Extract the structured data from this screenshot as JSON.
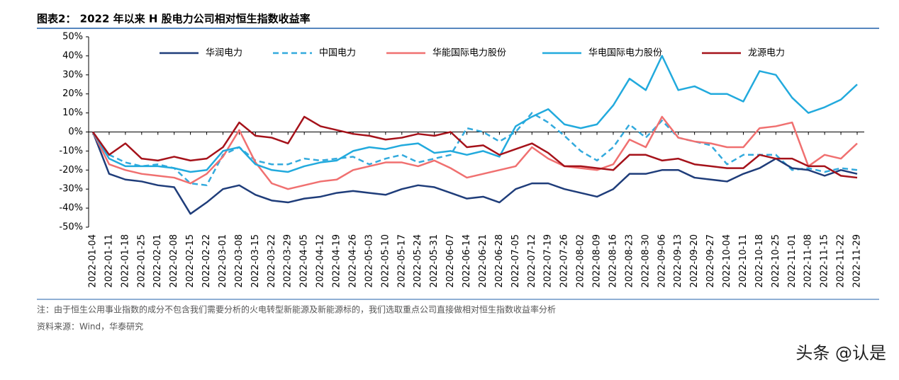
{
  "chart_data": {
    "type": "line",
    "title": "图表2： 2022 年以来 H 股电力公司相对恒生指数收益率",
    "categories": [
      "2022-01-04",
      "2022-01-11",
      "2022-01-18",
      "2022-01-25",
      "2022-02-01",
      "2022-02-08",
      "2022-02-15",
      "2022-02-22",
      "2022-03-01",
      "2022-03-08",
      "2022-03-15",
      "2022-03-22",
      "2022-03-29",
      "2022-04-05",
      "2022-04-12",
      "2022-04-19",
      "2022-04-26",
      "2022-05-03",
      "2022-05-10",
      "2022-05-17",
      "2022-05-24",
      "2022-05-31",
      "2022-06-07",
      "2022-06-14",
      "2022-06-21",
      "2022-06-28",
      "2022-07-05",
      "2022-07-12",
      "2022-07-19",
      "2022-07-26",
      "2022-08-02",
      "2022-08-09",
      "2022-08-16",
      "2022-08-23",
      "2022-08-30",
      "2022-09-06",
      "2022-09-13",
      "2022-09-20",
      "2022-09-27",
      "2022-10-04",
      "2022-10-11",
      "2022-10-18",
      "2022-10-25",
      "2022-11-01",
      "2022-11-08",
      "2022-11-15",
      "2022-11-22",
      "2022-11-29"
    ],
    "series": [
      {
        "name": "华润电力",
        "color": "#1f3d7a",
        "dashed": false,
        "values": [
          0,
          -22,
          -25,
          -26,
          -28,
          -29,
          -43,
          -37,
          -30,
          -28,
          -33,
          -36,
          -37,
          -35,
          -34,
          -32,
          -31,
          -32,
          -33,
          -30,
          -28,
          -29,
          -32,
          -35,
          -34,
          -37,
          -30,
          -27,
          -27,
          -30,
          -32,
          -34,
          -30,
          -22,
          -22,
          -20,
          -20,
          -24,
          -25,
          -26,
          -22,
          -19,
          -14,
          -19,
          -20,
          -23,
          -20,
          -22
        ]
      },
      {
        "name": "中国电力",
        "color": "#33aadd",
        "dashed": true,
        "values": [
          0,
          -12,
          -16,
          -18,
          -17,
          -19,
          -27,
          -28,
          -12,
          -8,
          -15,
          -17,
          -17,
          -14,
          -15,
          -14,
          -13,
          -17,
          -14,
          -12,
          -16,
          -14,
          -12,
          2,
          0,
          -5,
          0,
          10,
          5,
          -2,
          -10,
          -15,
          -8,
          4,
          -3,
          6,
          -3,
          -5,
          -7,
          -17,
          -12,
          -12,
          -12,
          -20,
          -19,
          -21,
          -19,
          -20
        ]
      },
      {
        "name": "华能国际电力股份",
        "color": "#f07070",
        "dashed": false,
        "values": [
          0,
          -17,
          -20,
          -22,
          -23,
          -24,
          -27,
          -22,
          -13,
          1,
          -16,
          -27,
          -30,
          -28,
          -26,
          -25,
          -20,
          -18,
          -16,
          -16,
          -18,
          -15,
          -19,
          -24,
          -22,
          -20,
          -18,
          -8,
          -14,
          -18,
          -19,
          -20,
          -17,
          -4,
          -8,
          8,
          -3,
          -5,
          -6,
          -8,
          -8,
          2,
          3,
          5,
          -18,
          -12,
          -14,
          -6
        ]
      },
      {
        "name": "华电国际电力股份",
        "color": "#22aadd",
        "dashed": false,
        "values": [
          0,
          -14,
          -18,
          -18,
          -18,
          -19,
          -21,
          -20,
          -10,
          -8,
          -17,
          -20,
          -21,
          -18,
          -16,
          -15,
          -10,
          -8,
          -9,
          -7,
          -6,
          -11,
          -10,
          -12,
          -10,
          -13,
          3,
          8,
          12,
          4,
          2,
          4,
          14,
          28,
          22,
          40,
          22,
          24,
          20,
          20,
          16,
          32,
          30,
          18,
          10,
          13,
          17,
          25
        ]
      },
      {
        "name": "龙源电力",
        "color": "#a5121a",
        "dashed": false,
        "values": [
          0,
          -12,
          -6,
          -14,
          -15,
          -13,
          -15,
          -14,
          -8,
          5,
          -2,
          -3,
          -6,
          8,
          3,
          1,
          -1,
          -2,
          -4,
          -3,
          -1,
          -2,
          0,
          -8,
          -7,
          -12,
          -9,
          -6,
          -11,
          -18,
          -18,
          -19,
          -20,
          -12,
          -12,
          -15,
          -14,
          -17,
          -18,
          -19,
          -19,
          -12,
          -14,
          -14,
          -18,
          -18,
          -23,
          -24
        ]
      }
    ],
    "ylim": [
      -50,
      50
    ],
    "yticks": [
      {
        "value": 50,
        "label": "50%"
      },
      {
        "value": 40,
        "label": "40%"
      },
      {
        "value": 30,
        "label": "30%"
      },
      {
        "value": 20,
        "label": "20%"
      },
      {
        "value": 10,
        "label": "10%"
      },
      {
        "value": 0,
        "label": "0%"
      },
      {
        "value": -10,
        "label": "-10%"
      },
      {
        "value": -20,
        "label": "-20%"
      },
      {
        "value": -30,
        "label": "-30%"
      },
      {
        "value": -40,
        "label": "-40%"
      },
      {
        "value": -50,
        "label": "-50%"
      }
    ],
    "grid": false,
    "note": "注：由于恒生公用事业指数的成分不包含我们需要分析的火电转型新能源及新能源标的，我们选取重点公司直接做相对恒生指数收益率分析",
    "source": "资料来源：Wind，华泰研究",
    "watermark": "头条 @认是"
  }
}
